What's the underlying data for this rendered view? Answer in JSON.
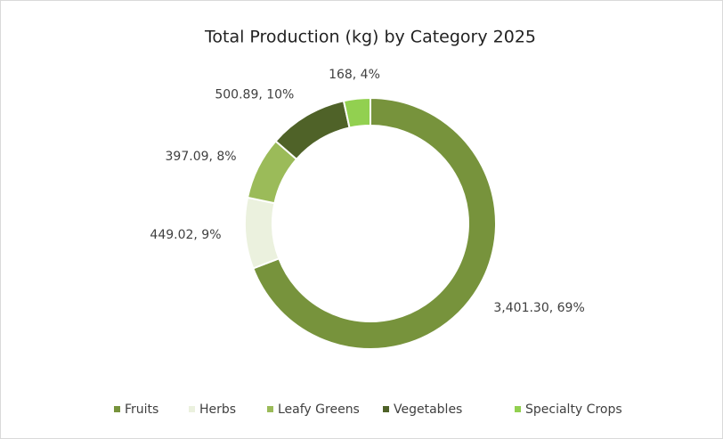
{
  "chart_data": {
    "type": "donut",
    "title": "Total Production (kg) by Category 2025",
    "categories": [
      "Fruits",
      "Herbs",
      "Leafy Greens",
      "Vegetables",
      "Specialty Crops"
    ],
    "values": [
      3401.3,
      449.02,
      397.09,
      500.89,
      168
    ],
    "value_labels": [
      "3,401.30, 69%",
      "449.02, 9%",
      "397.09, 8%",
      "500.89, 10%",
      "168, 4%"
    ],
    "colors": [
      "#77933c",
      "#ebf1de",
      "#9bbb59",
      "#4f6228",
      "#92d050"
    ],
    "legend": "bottom"
  }
}
